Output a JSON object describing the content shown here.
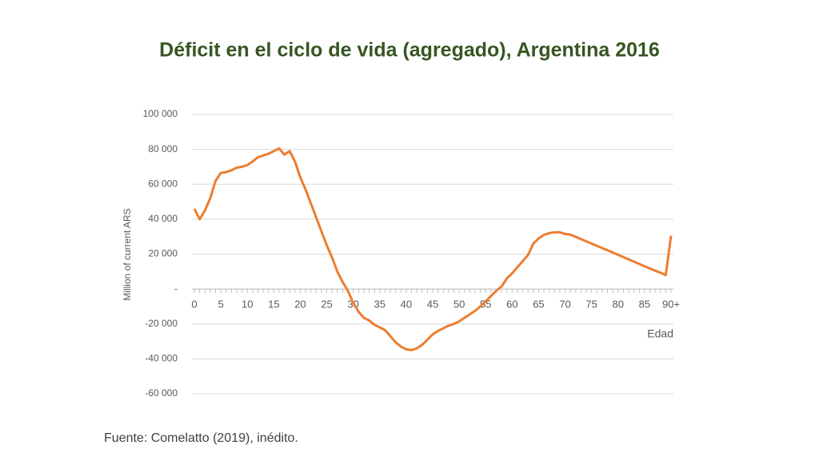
{
  "chart_data": {
    "type": "line",
    "title": "Déficit en el ciclo de vida (agregado), Argentina 2016",
    "y_label": "Million of current ARS",
    "x_label": "Edad",
    "source": "Fuente: Comelatto (2019), inédito.",
    "categories": [
      "0",
      null,
      null,
      null,
      null,
      "5",
      null,
      null,
      null,
      null,
      "10",
      null,
      null,
      null,
      null,
      "15",
      null,
      null,
      null,
      null,
      "20",
      null,
      null,
      null,
      null,
      "25",
      null,
      null,
      null,
      null,
      "30",
      null,
      null,
      null,
      null,
      "35",
      null,
      null,
      null,
      null,
      "40",
      null,
      null,
      null,
      null,
      "45",
      null,
      null,
      null,
      null,
      "50",
      null,
      null,
      null,
      null,
      "55",
      null,
      null,
      null,
      null,
      "60",
      null,
      null,
      null,
      null,
      "65",
      null,
      null,
      null,
      null,
      "70",
      null,
      null,
      null,
      null,
      "75",
      null,
      null,
      null,
      null,
      "80",
      null,
      null,
      null,
      null,
      "85",
      null,
      null,
      null,
      null,
      "90+"
    ],
    "values": [
      46000,
      40000,
      45000,
      52000,
      62000,
      66500,
      67000,
      68000,
      69500,
      70000,
      71000,
      73000,
      75500,
      76500,
      77500,
      79000,
      80500,
      77000,
      79000,
      73000,
      64000,
      57000,
      49000,
      41000,
      33000,
      25000,
      18000,
      10000,
      4000,
      -1000,
      -8000,
      -13000,
      -16500,
      -18000,
      -20500,
      -22000,
      -23500,
      -27000,
      -30500,
      -33000,
      -34500,
      -35000,
      -34000,
      -32000,
      -29000,
      -26000,
      -24000,
      -22500,
      -21000,
      -20000,
      -18500,
      -16500,
      -14500,
      -12500,
      -10000,
      -7000,
      -4000,
      -1000,
      1500,
      6000,
      9000,
      12500,
      16000,
      19500,
      26000,
      29000,
      31000,
      32000,
      32500,
      32500,
      31500,
      31200,
      29900,
      28600,
      27300,
      26000,
      24700,
      23500,
      22200,
      20900,
      19600,
      18300,
      17000,
      15700,
      14400,
      13100,
      11800,
      10500,
      9300,
      8000,
      30500
    ],
    "color": "#ed7d31",
    "ylim": [
      -60000,
      100000
    ],
    "yticks": [
      {
        "value": -60000,
        "label": "-60 000"
      },
      {
        "value": -40000,
        "label": "-40 000"
      },
      {
        "value": -20000,
        "label": "-20 000"
      },
      {
        "value": 0,
        "label": "-"
      },
      {
        "value": 20000,
        "label": "20 000"
      },
      {
        "value": 40000,
        "label": "40 000"
      },
      {
        "value": 60000,
        "label": "60 000"
      },
      {
        "value": 80000,
        "label": "80 000"
      },
      {
        "value": 100000,
        "label": "100 000"
      }
    ],
    "grid": true
  }
}
